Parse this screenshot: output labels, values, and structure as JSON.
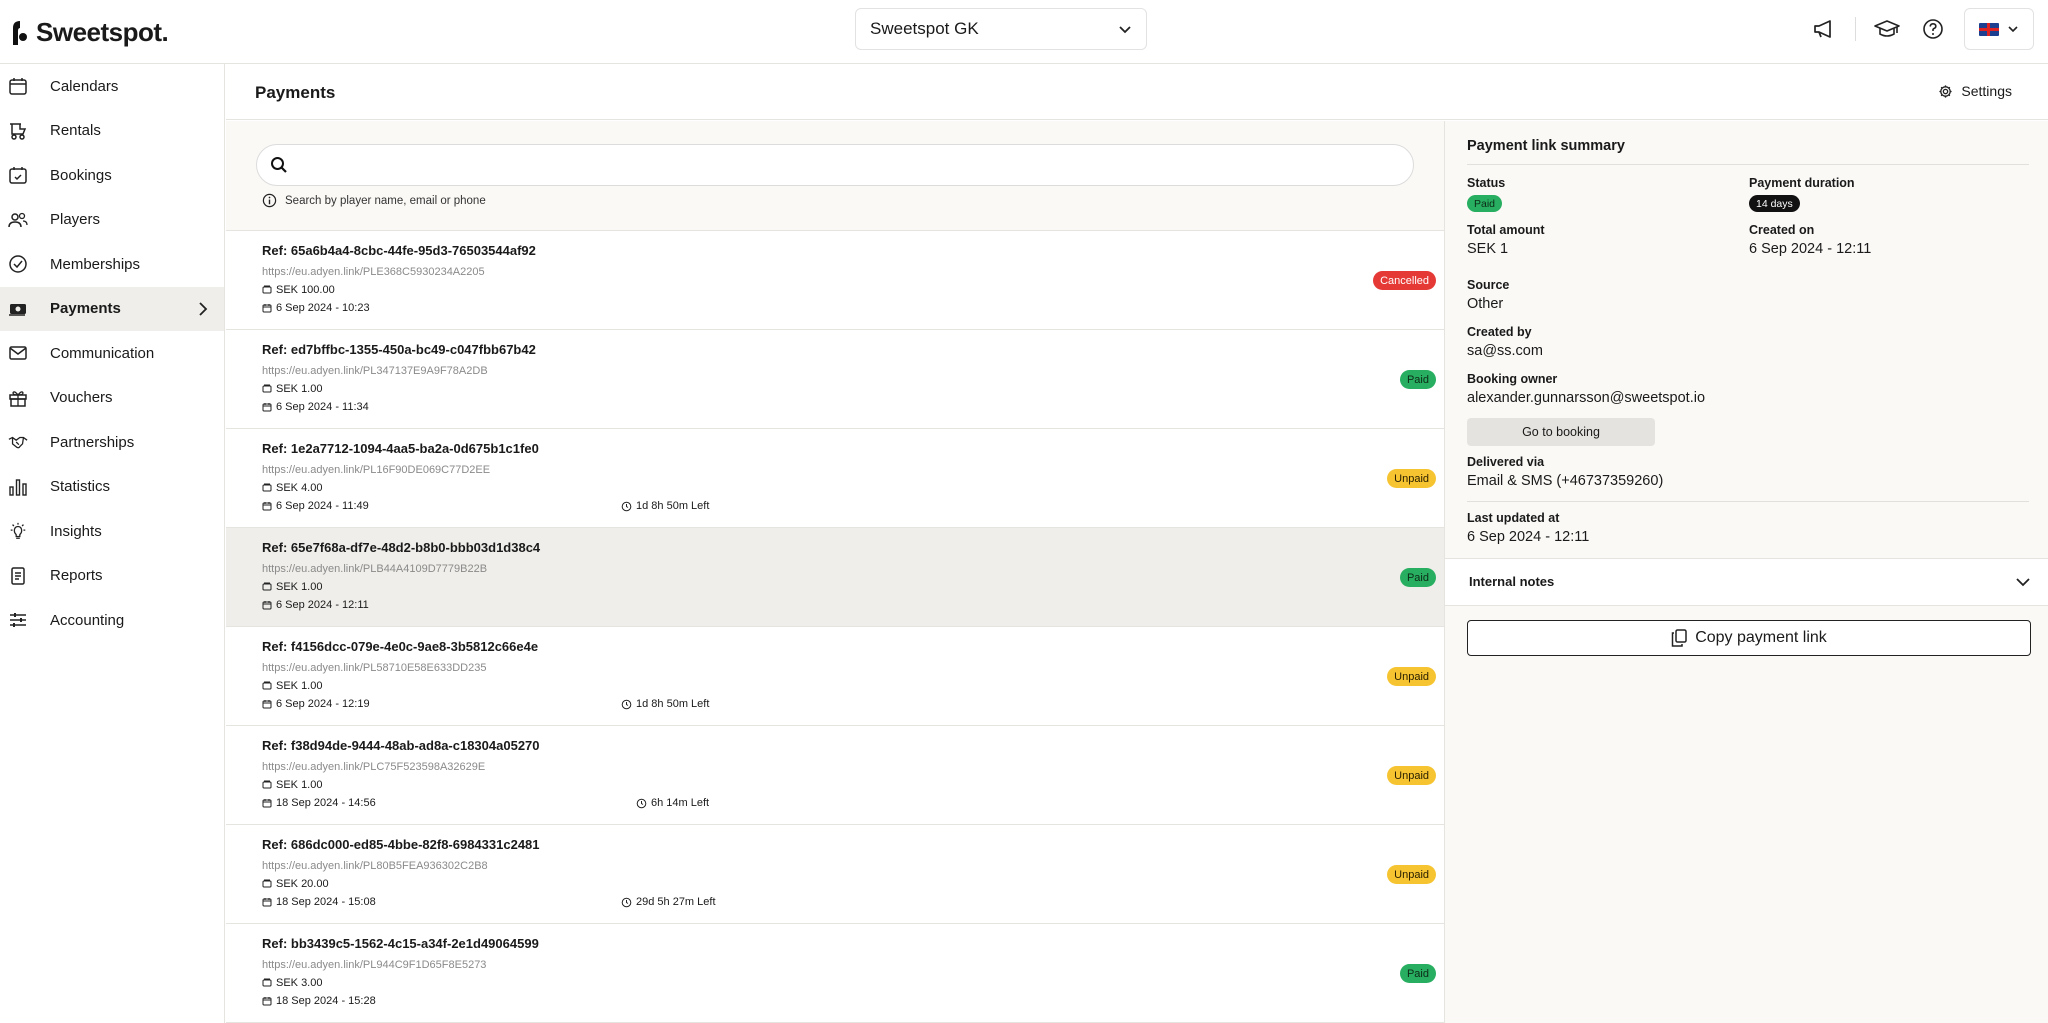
{
  "app": {
    "logo_text": "Sweetspot."
  },
  "header": {
    "club": "Sweetspot GK"
  },
  "sidebar": {
    "items": [
      {
        "label": "Calendars",
        "icon": "calendar-icon"
      },
      {
        "label": "Rentals",
        "icon": "golf-cart-icon"
      },
      {
        "label": "Bookings",
        "icon": "calendar-check-icon"
      },
      {
        "label": "Players",
        "icon": "users-icon"
      },
      {
        "label": "Memberships",
        "icon": "badge-check-icon"
      },
      {
        "label": "Payments",
        "icon": "money-icon"
      },
      {
        "label": "Communication",
        "icon": "mail-icon"
      },
      {
        "label": "Vouchers",
        "icon": "gift-icon"
      },
      {
        "label": "Partnerships",
        "icon": "handshake-icon"
      },
      {
        "label": "Statistics",
        "icon": "bar-chart-icon"
      },
      {
        "label": "Insights",
        "icon": "lightbulb-icon"
      },
      {
        "label": "Reports",
        "icon": "report-icon"
      },
      {
        "label": "Accounting",
        "icon": "sliders-icon"
      }
    ]
  },
  "page": {
    "title": "Payments",
    "settings_label": "Settings"
  },
  "search": {
    "value": "",
    "placeholder": "",
    "hint": "Search by player name, email or phone"
  },
  "payments": [
    {
      "ref": "Ref: 65a6b4a4-8cbc-44fe-95d3-76503544af92",
      "link": "https://eu.adyen.link/PLE368C5930234A2205",
      "amount": "SEK 100.00",
      "date": "6 Sep 2024 - 10:23",
      "left": "",
      "status": "Cancelled"
    },
    {
      "ref": "Ref: ed7bffbc-1355-450a-bc49-c047fbb67b42",
      "link": "https://eu.adyen.link/PL347137E9A9F78A2DB",
      "amount": "SEK 1.00",
      "date": "6 Sep 2024 - 11:34",
      "left": "",
      "status": "Paid"
    },
    {
      "ref": "Ref: 1e2a7712-1094-4aa5-ba2a-0d675b1c1fe0",
      "link": "https://eu.adyen.link/PL16F90DE069C77D2EE",
      "amount": "SEK 4.00",
      "date": "6 Sep 2024 - 11:49",
      "left": "1d 8h 50m Left",
      "status": "Unpaid"
    },
    {
      "ref": "Ref: 65e7f68a-df7e-48d2-b8b0-bbb03d1d38c4",
      "link": "https://eu.adyen.link/PLB44A4109D7779B22B",
      "amount": "SEK 1.00",
      "date": "6 Sep 2024 - 12:11",
      "left": "",
      "status": "Paid"
    },
    {
      "ref": "Ref: f4156dcc-079e-4e0c-9ae8-3b5812c66e4e",
      "link": "https://eu.adyen.link/PL58710E58E633DD235",
      "amount": "SEK 1.00",
      "date": "6 Sep 2024 - 12:19",
      "left": "1d 8h 50m Left",
      "status": "Unpaid"
    },
    {
      "ref": "Ref: f38d94de-9444-48ab-ad8a-c18304a05270",
      "link": "https://eu.adyen.link/PLC75F523598A32629E",
      "amount": "SEK 1.00",
      "date": "18 Sep 2024 - 14:56",
      "left": "6h 14m Left",
      "status": "Unpaid"
    },
    {
      "ref": "Ref: 686dc000-ed85-4bbe-82f8-6984331c2481",
      "link": "https://eu.adyen.link/PL80B5FEA936302C2B8",
      "amount": "SEK 20.00",
      "date": "18 Sep 2024 - 15:08",
      "left": "29d 5h 27m Left",
      "status": "Unpaid"
    },
    {
      "ref": "Ref: bb3439c5-1562-4c15-a34f-2e1d49064599",
      "link": "https://eu.adyen.link/PL944C9F1D65F8E5273",
      "amount": "SEK 3.00",
      "date": "18 Sep 2024 - 15:28",
      "left": "",
      "status": "Paid"
    }
  ],
  "summary": {
    "title": "Payment link summary",
    "status_label": "Status",
    "status_value": "Paid",
    "duration_label": "Payment duration",
    "duration_value": "14 days",
    "total_label": "Total amount",
    "total_value": "SEK 1",
    "created_on_label": "Created on",
    "created_on_value": "6 Sep 2024 - 12:11",
    "source_label": "Source",
    "source_value": "Other",
    "created_by_label": "Created by",
    "created_by_value": "sa@ss.com",
    "owner_label": "Booking owner",
    "owner_value": "alexander.gunnarsson@sweetspot.io",
    "goto_label": "Go to booking",
    "delivered_label": "Delivered via",
    "delivered_value": "Email & SMS (+46737359260)",
    "updated_label": "Last updated at",
    "updated_value": "6 Sep 2024 - 12:11",
    "notes_label": "Internal notes",
    "copy_label": "Copy payment link"
  },
  "colors": {
    "paid": "#27ae60",
    "unpaid": "#f6c431",
    "cancelled": "#e53935",
    "selected_row": "#efeeea"
  }
}
